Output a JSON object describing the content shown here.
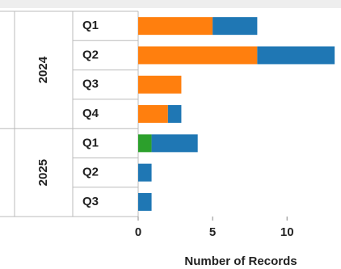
{
  "chart_data": {
    "type": "bar",
    "orientation": "horizontal",
    "stacked": true,
    "xlabel": "Number of Records",
    "xlim": [
      0,
      13.3
    ],
    "xticks": [
      0,
      5,
      10
    ],
    "row_groups": [
      {
        "label": "2024",
        "rows": [
          "Q1",
          "Q2",
          "Q3",
          "Q4"
        ]
      },
      {
        "label": "2025",
        "rows": [
          "Q1",
          "Q2",
          "Q3"
        ]
      }
    ],
    "series": [
      {
        "color": "#2ca02c",
        "values": [
          0,
          0,
          0,
          0,
          0.9,
          0,
          0
        ]
      },
      {
        "color": "#ff7f0e",
        "values": [
          5,
          8,
          2.9,
          2,
          0,
          0,
          0
        ]
      },
      {
        "color": "#1f77b4",
        "values": [
          3,
          5.2,
          0,
          0.9,
          3.1,
          0.9,
          0.9
        ]
      }
    ],
    "grid": false,
    "legend": "none"
  }
}
